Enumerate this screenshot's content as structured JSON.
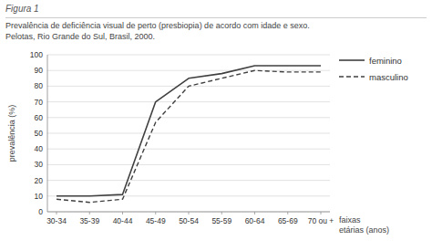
{
  "chart_data": {
    "type": "line",
    "title": "Figura 1",
    "subtitle": [
      "Prevalência de deficiência visual de perto (presbiopia) de acordo com idade e sexo.",
      "Pelotas, Rio Grande do Sul, Brasil, 2000."
    ],
    "x_label": "faixas\netárias (anos)",
    "y_label": "prevalência (%)",
    "categories": [
      "30-34",
      "35-39",
      "40-44",
      "45-49",
      "50-54",
      "55-59",
      "60-64",
      "65-69",
      "70 ou +"
    ],
    "series": [
      {
        "name": "feminino",
        "color": "#404040",
        "line_style": "solid",
        "values": [
          10,
          10,
          11,
          70,
          85,
          88,
          93,
          93,
          93
        ]
      },
      {
        "name": "masculino",
        "color": "#404040",
        "line_style": "dashed",
        "values": [
          8,
          6,
          8,
          57,
          80,
          85,
          90,
          89,
          89
        ]
      }
    ],
    "ylim": [
      0,
      100
    ],
    "yticks": [
      0,
      10,
      20,
      30,
      40,
      50,
      60,
      70,
      80,
      90,
      100
    ],
    "grid": true,
    "legend": "right"
  }
}
